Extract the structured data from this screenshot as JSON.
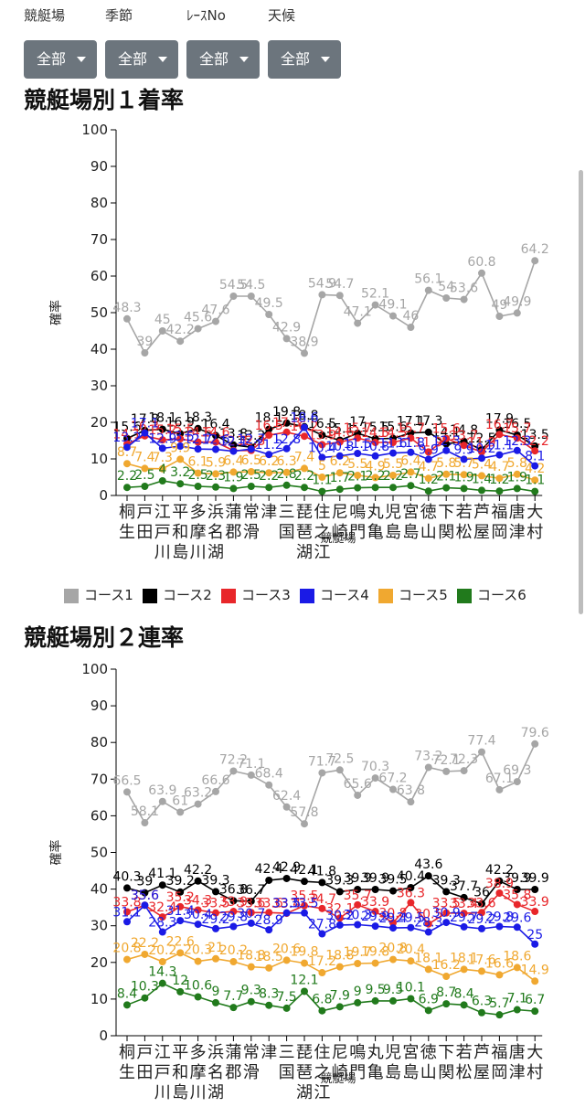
{
  "filters": [
    {
      "label": "競艇場",
      "value": "全部"
    },
    {
      "label": "季節",
      "value": "全部"
    },
    {
      "label": "ﾚｰｽNo",
      "value": "全部"
    },
    {
      "label": "天候",
      "value": "全部"
    }
  ],
  "colors": {
    "コース1": "#a6a6a6",
    "コース2": "#000000",
    "コース3": "#e8262a",
    "コース4": "#1a1ae6",
    "コース5": "#f0a830",
    "コース6": "#217a1c"
  },
  "chart_data": [
    {
      "type": "line",
      "title": "競艇場別１着率",
      "xlabel": "競艇場",
      "ylabel": "確率",
      "ylim": [
        0,
        100
      ],
      "yticks": [
        0,
        10,
        20,
        30,
        40,
        50,
        60,
        70,
        80,
        90,
        100
      ],
      "grid": false,
      "legend": "bottom",
      "categories": [
        "桐生",
        "戸田",
        "江戸川",
        "平和島",
        "多摩川",
        "浜名湖",
        "蒲郡",
        "常滑",
        "津",
        "三国",
        "琵琶湖",
        "住之江",
        "尼崎",
        "鳴門",
        "丸亀",
        "児島",
        "宮島",
        "徳山",
        "下関",
        "若松",
        "芦屋",
        "福岡",
        "唐津",
        "大村"
      ],
      "series": [
        {
          "name": "コース1",
          "values": [
            48.3,
            39,
            45,
            42.2,
            45.6,
            47.6,
            54.5,
            54.5,
            49.5,
            42.9,
            38.9,
            54.9,
            54.7,
            47.1,
            52.1,
            49.1,
            46,
            56.1,
            54,
            53.6,
            60.8,
            49,
            49.9,
            64.2
          ]
        },
        {
          "name": "コース2",
          "values": [
            15.6,
            17.8,
            18.1,
            16.9,
            18.3,
            16.4,
            13.8,
            13.2,
            18.1,
            19.8,
            18.8,
            16.5,
            15.1,
            17,
            15.5,
            15.6,
            17.1,
            17.3,
            14.1,
            14.8,
            12.5,
            17.9,
            16.5,
            13.5
          ]
        },
        {
          "name": "コース3",
          "values": [
            14.1,
            16.3,
            15.2,
            15.5,
            14.6,
            14.6,
            12.3,
            12.3,
            16.5,
            17.3,
            16.2,
            13.9,
            14.6,
            15.7,
            14.5,
            14.5,
            15.7,
            11.9,
            15.6,
            13.7,
            11.9,
            16.7,
            15.7,
            12.2
          ]
        },
        {
          "name": "コース4",
          "values": [
            13.2,
            17.1,
            12.9,
            13.5,
            12.7,
            12.6,
            12.1,
            12.7,
            11.2,
            12.8,
            18.6,
            10.4,
            10.8,
            11.5,
            10.8,
            11.6,
            11.8,
            9.9,
            12.3,
            9.9,
            10.2,
            11.1,
            12.3,
            8.1
          ]
        },
        {
          "name": "コース5",
          "values": [
            8.7,
            7.4,
            7.3,
            9.9,
            6.1,
            5.9,
            6.4,
            6.5,
            6.2,
            6.3,
            7.4,
            5,
            6.2,
            5.5,
            4.9,
            5.5,
            6.4,
            4.7,
            5.8,
            5.7,
            5.4,
            4.7,
            5.8,
            4.2
          ]
        },
        {
          "name": "コース6",
          "values": [
            2.2,
            2.5,
            4,
            3.2,
            2.5,
            2.3,
            1.9,
            2.5,
            2.2,
            2.8,
            2.2,
            1.1,
            1.7,
            2.1,
            2.2,
            2.2,
            2.7,
            1.2,
            2.1,
            1.9,
            1.4,
            1.2,
            1.9,
            1.1
          ]
        }
      ]
    },
    {
      "type": "line",
      "title": "競艇場別２連率",
      "xlabel": "競艇場",
      "ylabel": "確率",
      "ylim": [
        0,
        100
      ],
      "yticks": [
        0,
        10,
        20,
        30,
        40,
        50,
        60,
        70,
        80,
        90,
        100
      ],
      "grid": false,
      "legend": "bottom",
      "categories": [
        "桐生",
        "戸田",
        "江戸川",
        "平和島",
        "多摩川",
        "浜名湖",
        "蒲郡",
        "常滑",
        "津",
        "三国",
        "琵琶湖",
        "住之江",
        "尼崎",
        "鳴門",
        "丸亀",
        "児島",
        "宮島",
        "徳山",
        "下関",
        "若松",
        "芦屋",
        "福岡",
        "唐津",
        "大村"
      ],
      "series": [
        {
          "name": "コース1",
          "values": [
            66.5,
            58.1,
            63.9,
            61,
            63.2,
            66.6,
            72.2,
            71.1,
            68.4,
            62.4,
            57.8,
            71.7,
            72.5,
            65.6,
            70.3,
            67.2,
            63.8,
            73.2,
            72.1,
            72.3,
            77.4,
            67.1,
            69.3,
            79.6
          ]
        },
        {
          "name": "コース2",
          "values": [
            40.3,
            39,
            41.1,
            39.2,
            42.2,
            39.3,
            36.8,
            36.7,
            42.4,
            42.9,
            42.1,
            41.8,
            39.3,
            39.9,
            39.9,
            39.5,
            40.4,
            43.6,
            39.3,
            37.7,
            36,
            42.2,
            39.9,
            39.9
          ]
        },
        {
          "name": "コース3",
          "values": [
            33.8,
            35.6,
            32.4,
            35.2,
            34.3,
            33.5,
            33.9,
            33.6,
            33.6,
            33.4,
            35.5,
            34.7,
            32.1,
            35.7,
            33.9,
            30.8,
            36.3,
            30.5,
            33.5,
            33.4,
            33.6,
            38.9,
            35.8,
            33.9
          ]
        },
        {
          "name": "コース4",
          "values": [
            31.1,
            35.6,
            28.3,
            31.4,
            30.4,
            29.2,
            29.8,
            30.7,
            28.9,
            33.5,
            33.5,
            27.8,
            30.2,
            30.3,
            29.9,
            29.4,
            29.5,
            28.3,
            30.9,
            29.7,
            29.2,
            29.8,
            29.6,
            25
          ]
        },
        {
          "name": "コース5",
          "values": [
            20.8,
            22.2,
            20.2,
            22.6,
            20.3,
            21,
            20.2,
            18.8,
            18.5,
            20.6,
            19.8,
            17.2,
            18.8,
            19.7,
            19.8,
            20.8,
            20.4,
            18.1,
            16.2,
            18.1,
            17.6,
            16.6,
            18.6,
            14.9
          ]
        },
        {
          "name": "コース6",
          "values": [
            8.4,
            10.3,
            14.3,
            12,
            10.6,
            9,
            7.7,
            9.3,
            8.3,
            7.5,
            12.1,
            6.8,
            7.9,
            9,
            9.5,
            9.5,
            10.1,
            6.9,
            8.7,
            8.4,
            6.3,
            5.7,
            7.1,
            6.7
          ]
        }
      ]
    }
  ]
}
